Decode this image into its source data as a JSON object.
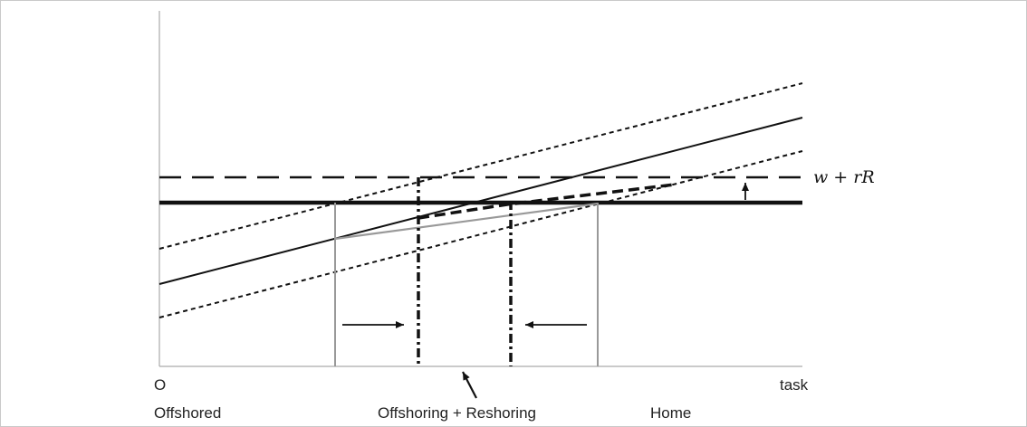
{
  "labels": {
    "origin": "O",
    "x_axis": "task",
    "region_left": "Offshored",
    "region_middle": "Offshoring + Reshoring",
    "region_right": "Home",
    "cost_line": "w + rR"
  },
  "colors": {
    "ink": "#111111",
    "gray_line": "#999999",
    "axis": "#aaaaaa",
    "border": "#c9c9c9"
  }
}
